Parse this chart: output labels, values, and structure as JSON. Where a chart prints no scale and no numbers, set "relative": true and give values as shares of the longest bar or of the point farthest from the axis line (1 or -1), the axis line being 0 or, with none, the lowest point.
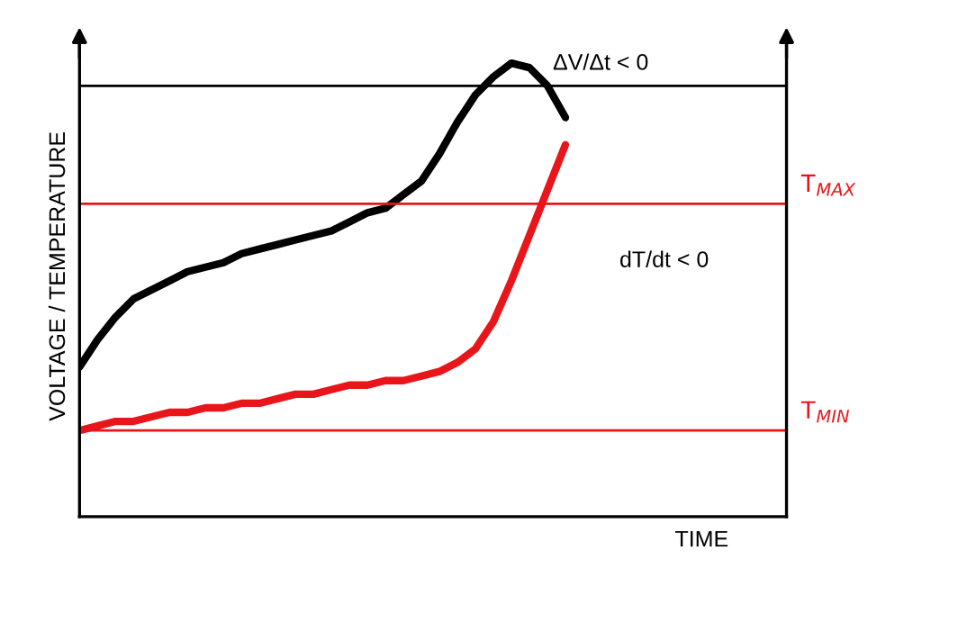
{
  "chart_data": {
    "type": "line",
    "relative": true,
    "xlabel": "TIME",
    "ylabel": "VOLTAGE / TEMPERATURE",
    "categories": [
      null,
      null,
      null,
      null,
      null,
      null,
      null,
      null,
      null,
      null,
      null,
      null,
      null,
      null,
      null,
      null,
      null,
      null,
      null,
      null,
      null,
      null,
      null,
      null,
      null,
      null,
      null,
      null
    ],
    "series": [
      {
        "color": "#000000",
        "values": [
          0.33,
          0.39,
          0.44,
          0.48,
          0.5,
          0.52,
          0.54,
          0.55,
          0.56,
          0.58,
          0.59,
          0.6,
          0.61,
          0.62,
          0.63,
          0.65,
          0.67,
          0.68,
          0.71,
          0.74,
          0.8,
          0.87,
          0.93,
          0.97,
          1.0,
          0.99,
          0.95,
          0.88
        ]
      },
      {
        "color": "#e8161b",
        "values": [
          0.19,
          0.2,
          0.21,
          0.21,
          0.22,
          0.23,
          0.23,
          0.24,
          0.24,
          0.25,
          0.25,
          0.26,
          0.27,
          0.27,
          0.28,
          0.29,
          0.29,
          0.3,
          0.3,
          0.31,
          0.32,
          0.34,
          0.37,
          0.43,
          0.52,
          0.62,
          0.72,
          0.82
        ]
      }
    ],
    "ref_lines": [
      {
        "axis": "y",
        "value": 0.95,
        "color": "#000000"
      },
      {
        "axis": "y",
        "value": 0.69,
        "label": "T$_{MAX}$",
        "color": "#e8161b"
      },
      {
        "axis": "y",
        "value": 0.19,
        "label": "T$_{MIN}$",
        "color": "#e8161b"
      }
    ],
    "annotations": [
      "ΔV/Δt < 0",
      "dT/dt < 0"
    ],
    "legend": false,
    "marker": "none",
    "line_style": "solid"
  }
}
